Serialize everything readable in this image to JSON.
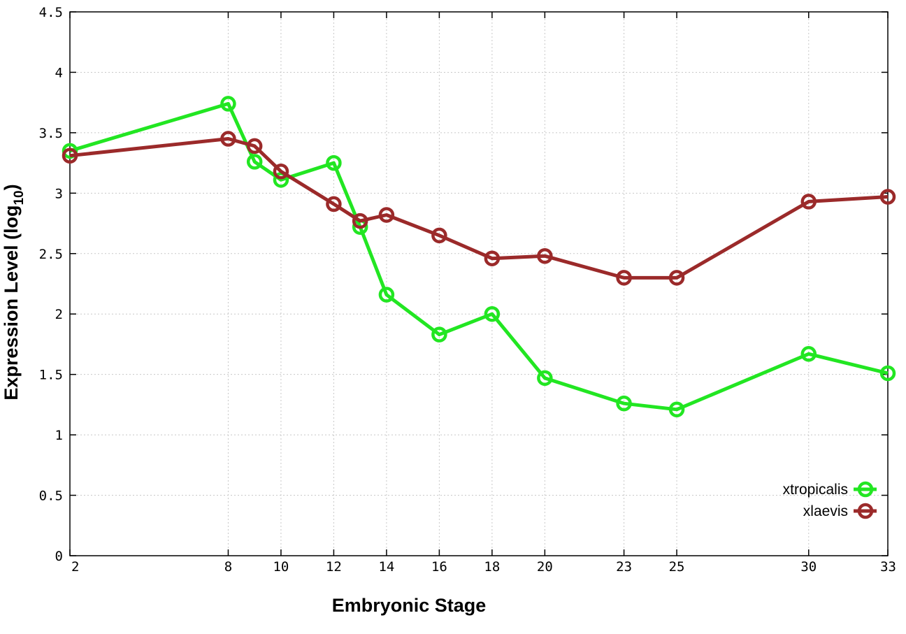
{
  "chart_data": {
    "type": "line",
    "xlabel": "Embryonic Stage",
    "ylabel_main": "Expression Level (log",
    "ylabel_sub": "10",
    "ylabel_close": ")",
    "x_ticks": [
      2,
      8,
      10,
      12,
      14,
      16,
      18,
      20,
      23,
      25,
      30,
      33
    ],
    "y_ticks": [
      "0",
      "0.5",
      "1",
      "1.5",
      "2",
      "2.5",
      "3",
      "3.5",
      "4",
      "4.5"
    ],
    "ylim": [
      0,
      4.5
    ],
    "grid": true,
    "legend_position": "bottom-right",
    "series": [
      {
        "name": "xtropicalis",
        "color": "#22e622",
        "points": [
          {
            "stage": 2,
            "value": 3.35
          },
          {
            "stage": 8,
            "value": 3.74
          },
          {
            "stage": 9,
            "value": 3.26
          },
          {
            "stage": 10,
            "value": 3.11
          },
          {
            "stage": 12,
            "value": 3.25
          },
          {
            "stage": 13,
            "value": 2.72
          },
          {
            "stage": 14,
            "value": 2.16
          },
          {
            "stage": 16,
            "value": 1.83
          },
          {
            "stage": 18,
            "value": 2.0
          },
          {
            "stage": 20,
            "value": 1.47
          },
          {
            "stage": 23,
            "value": 1.26
          },
          {
            "stage": 25,
            "value": 1.21
          },
          {
            "stage": 30,
            "value": 1.67
          },
          {
            "stage": 33,
            "value": 1.51
          }
        ]
      },
      {
        "name": "xlaevis",
        "color": "#9b2a2a",
        "points": [
          {
            "stage": 2,
            "value": 3.31
          },
          {
            "stage": 8,
            "value": 3.45
          },
          {
            "stage": 9,
            "value": 3.39
          },
          {
            "stage": 10,
            "value": 3.18
          },
          {
            "stage": 12,
            "value": 2.91
          },
          {
            "stage": 13,
            "value": 2.77
          },
          {
            "stage": 14,
            "value": 2.82
          },
          {
            "stage": 16,
            "value": 2.65
          },
          {
            "stage": 18,
            "value": 2.46
          },
          {
            "stage": 20,
            "value": 2.48
          },
          {
            "stage": 23,
            "value": 2.3
          },
          {
            "stage": 25,
            "value": 2.3
          },
          {
            "stage": 30,
            "value": 2.93
          },
          {
            "stage": 33,
            "value": 2.97
          }
        ]
      }
    ]
  }
}
